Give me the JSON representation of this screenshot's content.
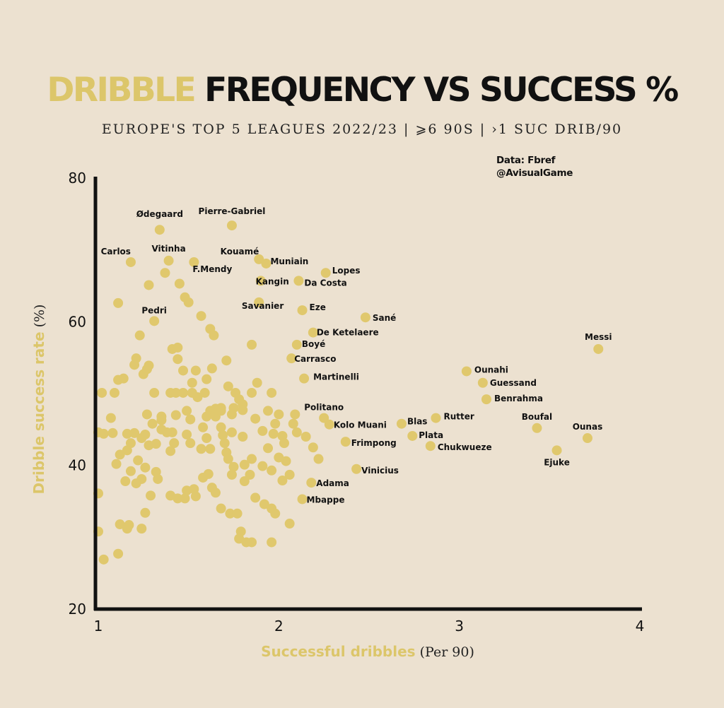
{
  "title": {
    "highlight": "DRIBBLE",
    "rest": " FREQUENCY VS SUCCESS %"
  },
  "subtitle": "EUROPE'S TOP 5 LEAGUES 2022/23  |  ⩾6 90S |  ›1 SUC DRIB/90",
  "credits": {
    "source": "Data: Fbref",
    "handle": "@AvisualGame"
  },
  "colors": {
    "background": "#ece1d0",
    "point": "#e0c86d",
    "accent": "#dcc66a",
    "axis": "#111111"
  },
  "chart_data": {
    "type": "scatter",
    "title": "DRIBBLE FREQUENCY VS SUCCESS %",
    "xlabel": {
      "main": "Successful dribbles",
      "unit": " (Per 90)"
    },
    "ylabel": {
      "main": "Dribble success rate",
      "unit": "  (%)"
    },
    "xlim": [
      1,
      4
    ],
    "ylim": [
      20,
      80
    ],
    "xticks": [
      "1",
      "2",
      "3",
      "4"
    ],
    "yticks": [
      "20",
      "40",
      "60",
      "80"
    ],
    "grid": false,
    "labeled_points": [
      {
        "name": "Ødegaard",
        "x": 1.34,
        "y": 72.8
      },
      {
        "name": "Pierre-Gabriel",
        "x": 1.74,
        "y": 73.4
      },
      {
        "name": "Carlos",
        "x": 1.18,
        "y": 68.3
      },
      {
        "name": "Vitinha",
        "x": 1.39,
        "y": 68.5
      },
      {
        "name": "F.Mendy",
        "x": 1.53,
        "y": 68.3
      },
      {
        "name": "Kouamé",
        "x": 1.89,
        "y": 68.7
      },
      {
        "name": "Muniain",
        "x": 1.93,
        "y": 68.1
      },
      {
        "name": "Kangin",
        "x": 1.9,
        "y": 65.7
      },
      {
        "name": "Da Costa",
        "x": 2.11,
        "y": 65.7
      },
      {
        "name": "Lopes",
        "x": 2.26,
        "y": 66.8
      },
      {
        "name": "Savanier",
        "x": 1.89,
        "y": 62.7
      },
      {
        "name": "Eze",
        "x": 2.13,
        "y": 61.6
      },
      {
        "name": "Sané",
        "x": 2.48,
        "y": 60.6
      },
      {
        "name": "Pedri",
        "x": 1.31,
        "y": 60.1
      },
      {
        "name": "De Ketelaere",
        "x": 2.19,
        "y": 58.5
      },
      {
        "name": "Boyé",
        "x": 2.1,
        "y": 56.8
      },
      {
        "name": "Carrasco",
        "x": 2.07,
        "y": 54.9
      },
      {
        "name": "Martinelli",
        "x": 2.14,
        "y": 52.1
      },
      {
        "name": "Politano",
        "x": 2.25,
        "y": 46.6
      },
      {
        "name": "Kolo Muani",
        "x": 2.28,
        "y": 45.7
      },
      {
        "name": "Frimpong",
        "x": 2.37,
        "y": 43.3
      },
      {
        "name": "Vinicius",
        "x": 2.43,
        "y": 39.5
      },
      {
        "name": "Adama",
        "x": 2.18,
        "y": 37.6
      },
      {
        "name": "Mbappe",
        "x": 2.13,
        "y": 35.3
      },
      {
        "name": "Blas",
        "x": 2.68,
        "y": 45.8
      },
      {
        "name": "Plata",
        "x": 2.74,
        "y": 44.1
      },
      {
        "name": "Rutter",
        "x": 2.87,
        "y": 46.6
      },
      {
        "name": "Chukwueze",
        "x": 2.84,
        "y": 42.7
      },
      {
        "name": "Ounahi",
        "x": 3.04,
        "y": 53.1
      },
      {
        "name": "Guessand",
        "x": 3.13,
        "y": 51.5
      },
      {
        "name": "Benrahma",
        "x": 3.15,
        "y": 49.2
      },
      {
        "name": "Boufal",
        "x": 3.43,
        "y": 45.2
      },
      {
        "name": "Ounas",
        "x": 3.71,
        "y": 43.8
      },
      {
        "name": "Ejuke",
        "x": 3.54,
        "y": 42.1
      },
      {
        "name": "Messi",
        "x": 3.77,
        "y": 56.2
      }
    ],
    "other_points": [
      [
        1.28,
        65.1
      ],
      [
        1.37,
        66.8
      ],
      [
        1.45,
        65.3
      ],
      [
        1.48,
        63.4
      ],
      [
        1.5,
        62.7
      ],
      [
        1.11,
        62.6
      ],
      [
        1.57,
        60.8
      ],
      [
        1.62,
        59.0
      ],
      [
        1.64,
        58.1
      ],
      [
        1.23,
        58.1
      ],
      [
        1.85,
        56.8
      ],
      [
        1.41,
        56.2
      ],
      [
        1.44,
        56.4
      ],
      [
        1.44,
        54.8
      ],
      [
        1.21,
        54.9
      ],
      [
        1.2,
        54.0
      ],
      [
        1.28,
        53.9
      ],
      [
        1.25,
        52.7
      ],
      [
        1.27,
        53.4
      ],
      [
        1.71,
        54.6
      ],
      [
        1.11,
        51.9
      ],
      [
        1.14,
        52.1
      ],
      [
        1.47,
        53.2
      ],
      [
        1.54,
        53.2
      ],
      [
        1.52,
        51.5
      ],
      [
        1.6,
        52.0
      ],
      [
        1.63,
        53.5
      ],
      [
        1.02,
        50.1
      ],
      [
        1.09,
        50.1
      ],
      [
        1.31,
        50.1
      ],
      [
        1.4,
        50.1
      ],
      [
        1.43,
        50.1
      ],
      [
        1.47,
        50.1
      ],
      [
        1.52,
        50.1
      ],
      [
        1.59,
        50.1
      ],
      [
        1.55,
        49.5
      ],
      [
        1.72,
        51.0
      ],
      [
        1.76,
        50.1
      ],
      [
        1.85,
        50.1
      ],
      [
        1.96,
        50.1
      ],
      [
        1.88,
        51.5
      ],
      [
        1.78,
        49.2
      ],
      [
        1.8,
        48.5
      ],
      [
        1.75,
        48.0
      ],
      [
        1.68,
        48.0
      ],
      [
        2.0,
        47.1
      ],
      [
        1.94,
        47.6
      ],
      [
        1.8,
        47.7
      ],
      [
        1.74,
        47.1
      ],
      [
        2.09,
        47.1
      ],
      [
        2.08,
        45.8
      ],
      [
        1.62,
        47.6
      ],
      [
        1.65,
        47.9
      ],
      [
        1.6,
        46.8
      ],
      [
        1.65,
        46.8
      ],
      [
        1.68,
        47.6
      ],
      [
        1.49,
        47.6
      ],
      [
        1.43,
        47.0
      ],
      [
        1.51,
        46.4
      ],
      [
        1.27,
        47.1
      ],
      [
        1.35,
        46.8
      ],
      [
        1.35,
        46.3
      ],
      [
        1.3,
        45.8
      ],
      [
        1.35,
        45.0
      ],
      [
        1.07,
        46.6
      ],
      [
        1.03,
        44.4
      ],
      [
        1.08,
        44.5
      ],
      [
        1.16,
        44.4
      ],
      [
        1.18,
        43.1
      ],
      [
        1.2,
        44.5
      ],
      [
        1.26,
        44.3
      ],
      [
        1.24,
        43.8
      ],
      [
        1.28,
        42.8
      ],
      [
        1.32,
        43.0
      ],
      [
        1.41,
        44.6
      ],
      [
        1.38,
        44.6
      ],
      [
        1.42,
        43.1
      ],
      [
        1.4,
        42.0
      ],
      [
        1.49,
        44.3
      ],
      [
        1.51,
        43.1
      ],
      [
        1.58,
        45.3
      ],
      [
        1.6,
        43.8
      ],
      [
        1.57,
        42.3
      ],
      [
        1.62,
        42.3
      ],
      [
        1.68,
        45.3
      ],
      [
        1.69,
        44.2
      ],
      [
        1.7,
        43.1
      ],
      [
        1.71,
        41.8
      ],
      [
        1.74,
        44.6
      ],
      [
        1.8,
        44.0
      ],
      [
        1.87,
        46.5
      ],
      [
        1.91,
        44.8
      ],
      [
        1.98,
        45.8
      ],
      [
        1.97,
        44.4
      ],
      [
        1.94,
        42.4
      ],
      [
        2.02,
        44.1
      ],
      [
        2.03,
        43.1
      ],
      [
        2.15,
        44.0
      ],
      [
        2.19,
        42.5
      ],
      [
        2.22,
        40.9
      ],
      [
        2.1,
        44.6
      ],
      [
        1.12,
        41.5
      ],
      [
        1.1,
        40.2
      ],
      [
        1.16,
        42.1
      ],
      [
        1.22,
        40.7
      ],
      [
        1.18,
        39.2
      ],
      [
        1.26,
        39.7
      ],
      [
        1.32,
        39.1
      ],
      [
        1.33,
        38.1
      ],
      [
        1.29,
        35.8
      ],
      [
        1.24,
        38.1
      ],
      [
        1.21,
        37.5
      ],
      [
        1.15,
        37.8
      ],
      [
        1.0,
        36.1
      ],
      [
        1.4,
        35.8
      ],
      [
        1.44,
        35.4
      ],
      [
        1.49,
        36.5
      ],
      [
        1.48,
        35.4
      ],
      [
        1.53,
        36.7
      ],
      [
        1.54,
        35.7
      ],
      [
        1.63,
        36.9
      ],
      [
        1.65,
        36.2
      ],
      [
        1.58,
        38.3
      ],
      [
        1.61,
        38.8
      ],
      [
        1.72,
        40.9
      ],
      [
        1.75,
        39.8
      ],
      [
        1.81,
        40.1
      ],
      [
        1.85,
        40.9
      ],
      [
        1.74,
        38.7
      ],
      [
        1.81,
        37.8
      ],
      [
        1.84,
        38.7
      ],
      [
        1.91,
        39.9
      ],
      [
        1.96,
        39.3
      ],
      [
        2.04,
        40.6
      ],
      [
        2.0,
        41.1
      ],
      [
        2.02,
        37.9
      ],
      [
        2.06,
        38.7
      ],
      [
        1.68,
        34.0
      ],
      [
        1.73,
        33.3
      ],
      [
        1.77,
        33.3
      ],
      [
        1.87,
        35.5
      ],
      [
        1.92,
        34.6
      ],
      [
        1.96,
        34.0
      ],
      [
        1.98,
        33.3
      ],
      [
        2.06,
        31.9
      ],
      [
        1.79,
        30.8
      ],
      [
        1.78,
        29.8
      ],
      [
        1.82,
        29.3
      ],
      [
        1.85,
        29.3
      ],
      [
        1.96,
        29.3
      ],
      [
        1.0,
        30.8
      ],
      [
        1.03,
        26.9
      ],
      [
        1.11,
        27.7
      ],
      [
        1.12,
        31.8
      ],
      [
        1.16,
        31.2
      ],
      [
        1.17,
        31.7
      ],
      [
        1.24,
        31.2
      ],
      [
        1.26,
        33.4
      ],
      [
        1.0,
        44.6
      ]
    ]
  }
}
